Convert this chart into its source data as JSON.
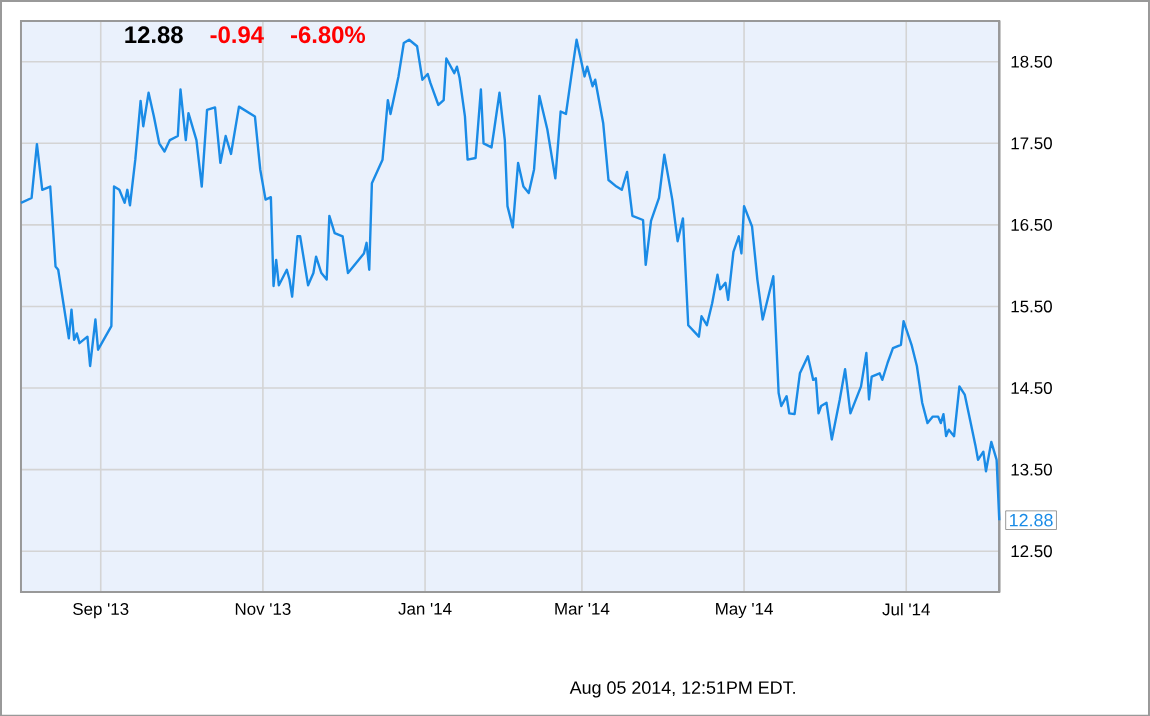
{
  "chart_data": {
    "type": "line",
    "title": "12.88",
    "annotations": [
      {
        "text": "12.88",
        "x": "2014-08-05",
        "y": 12.88
      },
      "-0.94",
      "-6.80%",
      "Aug 05 2014, 12:51PM EDT."
    ],
    "x": [
      "2013-08-02",
      "2013-08-06",
      "2013-08-08",
      "2013-08-10",
      "2013-08-13",
      "2013-08-15",
      "2013-08-16",
      "2013-08-20",
      "2013-08-21",
      "2013-08-22",
      "2013-08-23",
      "2013-08-24",
      "2013-08-27",
      "2013-08-28",
      "2013-08-30",
      "2013-08-31",
      "2013-09-05",
      "2013-09-06",
      "2013-09-08",
      "2013-09-10",
      "2013-09-11",
      "2013-09-12",
      "2013-09-14",
      "2013-09-16",
      "2013-09-17",
      "2013-09-19",
      "2013-09-21",
      "2013-09-23",
      "2013-09-25",
      "2013-09-27",
      "2013-09-30",
      "2013-10-01",
      "2013-10-03",
      "2013-10-04",
      "2013-10-07",
      "2013-10-09",
      "2013-10-11",
      "2013-10-14",
      "2013-10-16",
      "2013-10-18",
      "2013-10-20",
      "2013-10-23",
      "2013-10-29",
      "2013-10-31",
      "2013-11-02",
      "2013-11-04",
      "2013-11-05",
      "2013-11-06",
      "2013-11-07",
      "2013-11-10",
      "2013-11-11",
      "2013-11-12",
      "2013-11-14",
      "2013-11-15",
      "2013-11-18",
      "2013-11-20",
      "2013-11-21",
      "2013-11-23",
      "2013-11-25",
      "2013-11-26",
      "2013-11-28",
      "2013-12-01",
      "2013-12-03",
      "2013-12-07",
      "2013-12-09",
      "2013-12-10",
      "2013-12-11",
      "2013-12-12",
      "2013-12-16",
      "2013-12-18",
      "2013-12-19",
      "2013-12-22",
      "2013-12-24",
      "2013-12-26",
      "2013-12-29",
      "2013-12-31",
      "2014-01-02",
      "2014-01-03",
      "2014-01-06",
      "2014-01-08",
      "2014-01-09",
      "2014-01-12",
      "2014-01-13",
      "2014-01-14",
      "2014-01-16",
      "2014-01-17",
      "2014-01-20",
      "2014-01-22",
      "2014-01-23",
      "2014-01-26",
      "2014-01-27",
      "2014-01-29",
      "2014-01-31",
      "2014-02-01",
      "2014-02-03",
      "2014-02-05",
      "2014-02-07",
      "2014-02-09",
      "2014-02-11",
      "2014-02-13",
      "2014-02-16",
      "2014-02-19",
      "2014-02-21",
      "2014-02-23",
      "2014-02-25",
      "2014-02-27",
      "2014-03-02",
      "2014-03-03",
      "2014-03-05",
      "2014-03-06",
      "2014-03-09",
      "2014-03-11",
      "2014-03-14",
      "2014-03-16",
      "2014-03-18",
      "2014-03-20",
      "2014-03-24",
      "2014-03-25",
      "2014-03-27",
      "2014-03-30",
      "2014-04-01",
      "2014-04-04",
      "2014-04-06",
      "2014-04-08",
      "2014-04-10",
      "2014-04-14",
      "2014-04-15",
      "2014-04-17",
      "2014-04-19",
      "2014-04-21",
      "2014-04-22",
      "2014-04-24",
      "2014-04-25",
      "2014-04-27",
      "2014-04-29",
      "2014-04-30",
      "2014-05-01",
      "2014-05-04",
      "2014-05-06",
      "2014-05-08",
      "2014-05-12",
      "2014-05-14",
      "2014-05-15",
      "2014-05-17",
      "2014-05-18",
      "2014-05-20",
      "2014-05-22",
      "2014-05-25",
      "2014-05-27",
      "2014-05-28",
      "2014-05-29",
      "2014-05-30",
      "2014-06-01",
      "2014-06-03",
      "2014-06-06",
      "2014-06-08",
      "2014-06-10",
      "2014-06-14",
      "2014-06-16",
      "2014-06-17",
      "2014-06-18",
      "2014-06-21",
      "2014-06-22",
      "2014-06-24",
      "2014-06-26",
      "2014-06-29",
      "2014-06-30",
      "2014-07-03",
      "2014-07-05",
      "2014-07-07",
      "2014-07-09",
      "2014-07-11",
      "2014-07-13",
      "2014-07-14",
      "2014-07-15",
      "2014-07-16",
      "2014-07-17",
      "2014-07-19",
      "2014-07-21",
      "2014-07-23",
      "2014-07-25",
      "2014-07-27",
      "2014-07-28",
      "2014-07-30",
      "2014-07-31",
      "2014-08-02",
      "2014-08-04",
      "2014-08-05"
    ],
    "values": [
      16.77,
      16.83,
      17.49,
      16.93,
      16.97,
      15.99,
      15.95,
      15.11,
      15.46,
      15.09,
      15.17,
      15.05,
      15.13,
      14.77,
      15.34,
      14.97,
      15.26,
      16.97,
      16.93,
      16.77,
      16.93,
      16.74,
      17.3,
      18.02,
      17.71,
      18.12,
      17.83,
      17.5,
      17.4,
      17.54,
      17.59,
      18.16,
      17.54,
      17.87,
      17.54,
      16.97,
      17.91,
      17.94,
      17.26,
      17.59,
      17.37,
      17.95,
      17.83,
      17.18,
      16.81,
      16.84,
      15.75,
      16.07,
      15.76,
      15.95,
      15.83,
      15.62,
      16.36,
      16.36,
      15.76,
      15.91,
      16.11,
      15.91,
      15.83,
      16.61,
      16.4,
      16.36,
      15.91,
      16.07,
      16.15,
      16.28,
      15.95,
      17.01,
      17.3,
      18.03,
      17.86,
      18.32,
      18.73,
      18.77,
      18.69,
      18.28,
      18.35,
      18.24,
      17.97,
      18.03,
      18.54,
      18.36,
      18.44,
      18.3,
      17.83,
      17.3,
      17.32,
      18.16,
      17.5,
      17.45,
      17.67,
      18.12,
      17.54,
      16.73,
      16.47,
      17.26,
      16.97,
      16.89,
      17.18,
      18.08,
      17.67,
      17.07,
      17.89,
      17.86,
      18.32,
      18.77,
      18.32,
      18.44,
      18.2,
      18.28,
      17.75,
      17.05,
      16.97,
      16.93,
      17.15,
      16.61,
      16.56,
      16.01,
      16.55,
      16.83,
      17.36,
      16.81,
      16.3,
      16.58,
      15.27,
      15.13,
      15.38,
      15.27,
      15.54,
      15.89,
      15.71,
      15.79,
      15.58,
      16.17,
      16.36,
      16.15,
      16.73,
      16.48,
      15.83,
      15.34,
      15.87,
      14.44,
      14.28,
      14.4,
      14.19,
      14.18,
      14.68,
      14.89,
      14.6,
      14.62,
      14.19,
      14.28,
      14.32,
      13.87,
      14.36,
      14.73,
      14.19,
      14.52,
      14.93,
      14.36,
      14.64,
      14.68,
      14.6,
      14.81,
      14.99,
      15.03,
      15.32,
      15.03,
      14.77,
      14.32,
      14.07,
      14.15,
      14.15,
      14.07,
      14.18,
      13.91,
      13.99,
      13.91,
      14.52,
      14.42,
      14.11,
      13.8,
      13.62,
      13.72,
      13.48,
      13.84,
      13.62,
      12.88
    ],
    "color": "#1a8be6",
    "xlim": [
      "2013-08-02",
      "2014-08-05"
    ],
    "xticks": [
      {
        "value": "2013-09-01",
        "label": "Sep '13"
      },
      {
        "value": "2013-11-01",
        "label": "Nov '13"
      },
      {
        "value": "2014-01-01",
        "label": "Jan '14"
      },
      {
        "value": "2014-03-01",
        "label": "Mar '14"
      },
      {
        "value": "2014-05-01",
        "label": "May '14"
      },
      {
        "value": "2014-07-01",
        "label": "Jul '14"
      }
    ],
    "ylim": [
      12.0,
      19.0
    ],
    "yticks": [
      {
        "value": 12.5,
        "label": "12.50"
      },
      {
        "value": 13.5,
        "label": "13.50"
      },
      {
        "value": 14.5,
        "label": "14.50"
      },
      {
        "value": 15.5,
        "label": "15.50"
      },
      {
        "value": 16.5,
        "label": "16.50"
      },
      {
        "value": 17.5,
        "label": "17.50"
      },
      {
        "value": 18.5,
        "label": "18.50"
      }
    ],
    "grid": true,
    "marker": "none",
    "line_style": "solid"
  }
}
